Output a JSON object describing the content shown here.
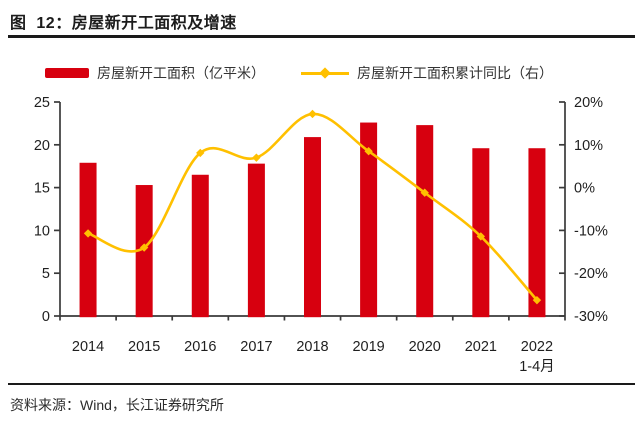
{
  "header": {
    "title": "图  12：房屋新开工面积及增速"
  },
  "legend": {
    "items": [
      {
        "label": "房屋新开工面积（亿平米）",
        "type": "bar",
        "color": "#d7000f"
      },
      {
        "label": "房屋新开工面积累计同比（右）",
        "type": "line",
        "color": "#ffc000"
      }
    ]
  },
  "chart_data": {
    "type": "bar+line",
    "title": "房屋新开工面积及增速",
    "categories": [
      "2014",
      "2015",
      "2016",
      "2017",
      "2018",
      "2019",
      "2020",
      "2021",
      "2022"
    ],
    "category_sublabels": {
      "8": "1-4月"
    },
    "series": [
      {
        "name": "房屋新开工面积（亿平米）",
        "type": "bar",
        "axis": "left",
        "color": "#d7000f",
        "values": [
          17.9,
          15.3,
          16.5,
          17.8,
          20.9,
          22.6,
          22.3,
          19.6,
          19.6
        ]
      },
      {
        "name": "房屋新开工面积累计同比（右）",
        "type": "line",
        "axis": "right",
        "color": "#ffc000",
        "values": [
          -10.7,
          -14.0,
          8.1,
          7.0,
          17.2,
          8.5,
          -1.2,
          -11.4,
          -26.3
        ]
      }
    ],
    "left_axis": {
      "min": 0,
      "max": 25,
      "ticks": [
        0,
        5,
        10,
        15,
        20,
        25
      ]
    },
    "right_axis": {
      "min": -30,
      "max": 20,
      "ticks": [
        {
          "value": 20,
          "label": "20%"
        },
        {
          "value": 10,
          "label": "10%"
        },
        {
          "value": 0,
          "label": "0%"
        },
        {
          "value": -10,
          "label": "-10%"
        },
        {
          "value": -20,
          "label": "-20%"
        },
        {
          "value": -30,
          "label": "-30%"
        }
      ]
    },
    "grid": false,
    "legend_position": "top",
    "axis_color": "#3a3a3a",
    "label_color": "#1f1f1f"
  },
  "footer": {
    "source": "资料来源：Wind，长江证券研究所"
  }
}
